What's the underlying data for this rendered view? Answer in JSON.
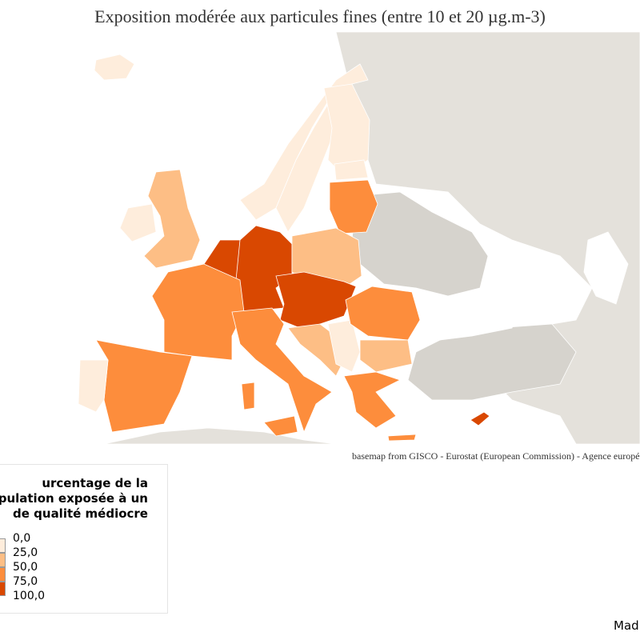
{
  "title": "Exposition modérée aux particules fines (entre 10 et 20 µg.m-3)",
  "source": "basemap from GISCO - Eurostat (European Commission) - Agence européenn",
  "credit": "Mad",
  "legend": {
    "title_lines": [
      "urcentage de la",
      "pulation exposée à un",
      "de qualité médiocre"
    ],
    "labels": [
      "0,0",
      "25,0",
      "50,0",
      "75,0",
      "100,0"
    ],
    "colors": [
      "#feeddc",
      "#fdbe85",
      "#fd8d3c",
      "#e6550d",
      "#d94801"
    ]
  },
  "colors": {
    "nodata_land": "#e4e1db",
    "neighbor_land": "#d6d3cd",
    "sea": "#ffffff",
    "class1": "#feeddc",
    "class2": "#fdbe85",
    "class3": "#fd8d3c",
    "class4": "#d94801"
  }
}
